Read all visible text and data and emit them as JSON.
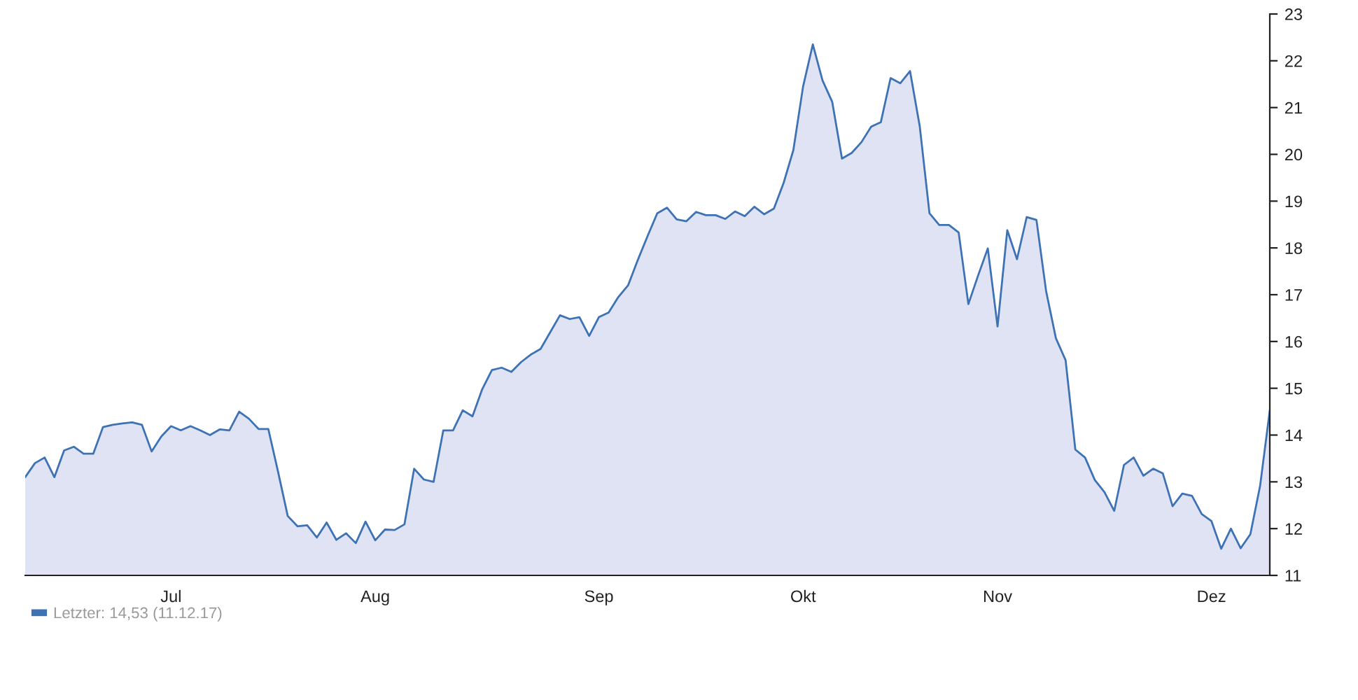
{
  "chart_data": {
    "type": "area",
    "categories": [
      null,
      null,
      null,
      null,
      null,
      null,
      null,
      null,
      null,
      null,
      null,
      null,
      null,
      null,
      null,
      "Jul",
      null,
      null,
      null,
      null,
      null,
      null,
      null,
      null,
      null,
      null,
      null,
      null,
      null,
      null,
      null,
      null,
      null,
      null,
      null,
      null,
      "Aug",
      null,
      null,
      null,
      null,
      null,
      null,
      null,
      null,
      null,
      null,
      null,
      null,
      null,
      null,
      null,
      null,
      null,
      null,
      null,
      null,
      null,
      null,
      "Sep",
      null,
      null,
      null,
      null,
      null,
      null,
      null,
      null,
      null,
      null,
      null,
      null,
      null,
      null,
      null,
      null,
      null,
      null,
      null,
      null,
      "Okt",
      null,
      null,
      null,
      null,
      null,
      null,
      null,
      null,
      null,
      null,
      null,
      null,
      null,
      null,
      null,
      null,
      null,
      null,
      null,
      "Nov",
      null,
      null,
      null,
      null,
      null,
      null,
      null,
      null,
      null,
      null,
      null,
      null,
      null,
      null,
      null,
      null,
      null,
      null,
      null,
      null,
      null,
      "Dez",
      null,
      null,
      null,
      null,
      null,
      null
    ],
    "series": [
      {
        "name": "Letzter: 14,53 (11.12.17)",
        "color": "#3d72b5",
        "values": [
          13.1,
          13.4,
          13.52,
          13.1,
          13.67,
          13.75,
          13.6,
          13.6,
          14.17,
          14.22,
          14.25,
          14.27,
          14.22,
          13.65,
          13.97,
          14.19,
          14.1,
          14.19,
          14.1,
          14.0,
          14.12,
          14.1,
          14.5,
          14.35,
          14.13,
          14.13,
          13.22,
          12.27,
          12.05,
          12.07,
          11.81,
          12.13,
          11.76,
          11.9,
          11.69,
          12.15,
          11.75,
          11.98,
          11.97,
          12.09,
          13.28,
          13.05,
          13.0,
          14.1,
          14.1,
          14.53,
          14.4,
          14.98,
          15.39,
          15.44,
          15.35,
          15.56,
          15.72,
          15.84,
          16.2,
          16.56,
          16.48,
          16.52,
          16.12,
          16.52,
          16.62,
          16.95,
          17.2,
          17.74,
          18.25,
          18.74,
          18.86,
          18.61,
          18.57,
          18.77,
          18.7,
          18.7,
          18.62,
          18.78,
          18.68,
          18.88,
          18.72,
          18.84,
          19.39,
          20.09,
          21.45,
          22.35,
          21.58,
          21.12,
          19.91,
          20.03,
          20.26,
          20.59,
          20.69,
          21.63,
          21.52,
          21.78,
          20.6,
          18.74,
          18.49,
          18.49,
          18.33,
          16.8,
          17.41,
          17.99,
          16.32,
          18.38,
          17.76,
          18.66,
          18.6,
          17.07,
          16.07,
          15.6,
          13.69,
          13.52,
          13.04,
          12.78,
          12.38,
          13.36,
          13.52,
          13.13,
          13.28,
          13.18,
          12.48,
          12.75,
          12.7,
          12.31,
          12.16,
          11.57,
          12.0,
          11.58,
          11.88,
          12.91,
          14.53
        ]
      }
    ],
    "ylim": [
      11,
      23
    ],
    "yticks": [
      11,
      12,
      13,
      14,
      15,
      16,
      17,
      18,
      19,
      20,
      21,
      22,
      23
    ],
    "grid": false,
    "legend": "bottom left"
  }
}
